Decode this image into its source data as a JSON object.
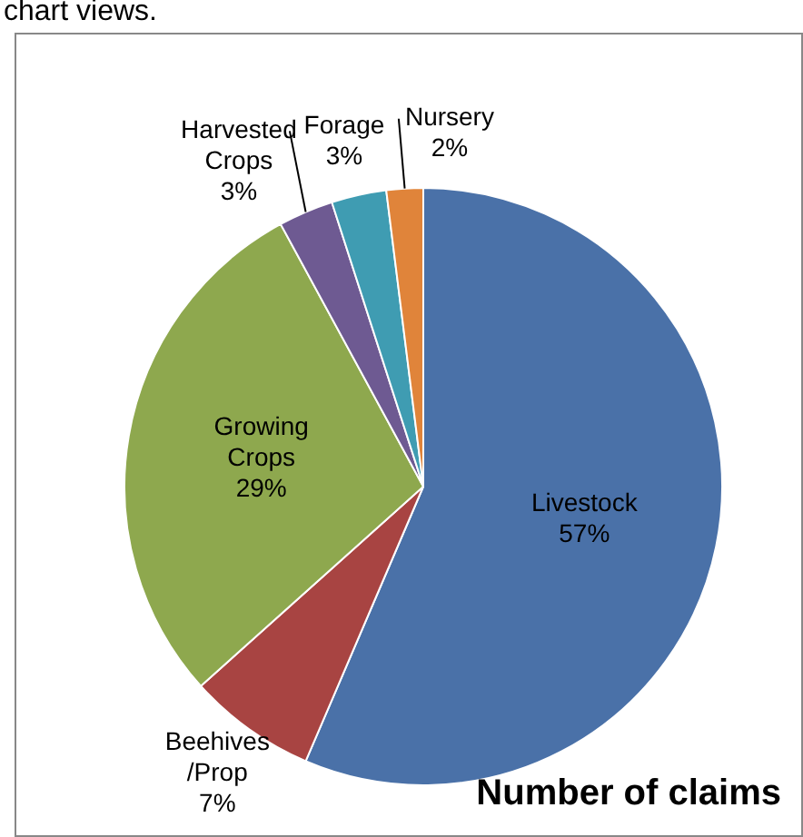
{
  "chart_data": {
    "type": "pie",
    "title": "Number of claims",
    "annotations": [
      "chart views."
    ],
    "categories": [
      "Livestock",
      "Beehives /Prop",
      "Growing Crops",
      "Harvested Crops",
      "Forage",
      "Nursery"
    ],
    "values": [
      57,
      7,
      29,
      3,
      3,
      2
    ],
    "value_labels": [
      "57%",
      "7%",
      "29%",
      "3%",
      "3%",
      "2%"
    ],
    "colors": [
      "#4a71a8",
      "#a84442",
      "#8ea84e",
      "#6e5a92",
      "#3f9cb2",
      "#e0843a"
    ],
    "legend": false
  }
}
